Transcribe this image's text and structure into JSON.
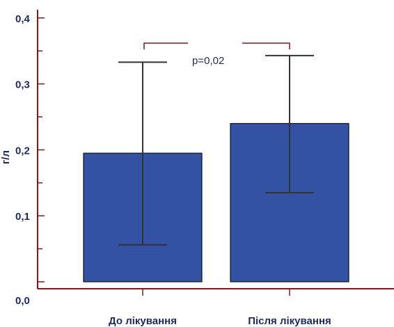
{
  "chart_data": {
    "type": "bar",
    "categories": [
      "До лікування",
      "Після лікування"
    ],
    "values": [
      0.195,
      0.24
    ],
    "error_low": [
      0.056,
      0.135
    ],
    "error_high": [
      0.333,
      0.343
    ],
    "ylabel": "г/л",
    "ylim": [
      0,
      0.42
    ],
    "y_ticks": [
      "0,0",
      "0,1",
      "0,2",
      "0,3",
      "0,4"
    ],
    "y_tick_values": [
      0,
      0.1,
      0.2,
      0.3,
      0.4
    ],
    "annotation": "p=0,02",
    "grid": false,
    "colors": {
      "bar_fill": "#3352a3",
      "bar_stroke": "#111111",
      "axis": "#7a1a1a",
      "error": "#333333",
      "bracket": "#7a1a1a",
      "text": "#1f2a5c"
    }
  }
}
